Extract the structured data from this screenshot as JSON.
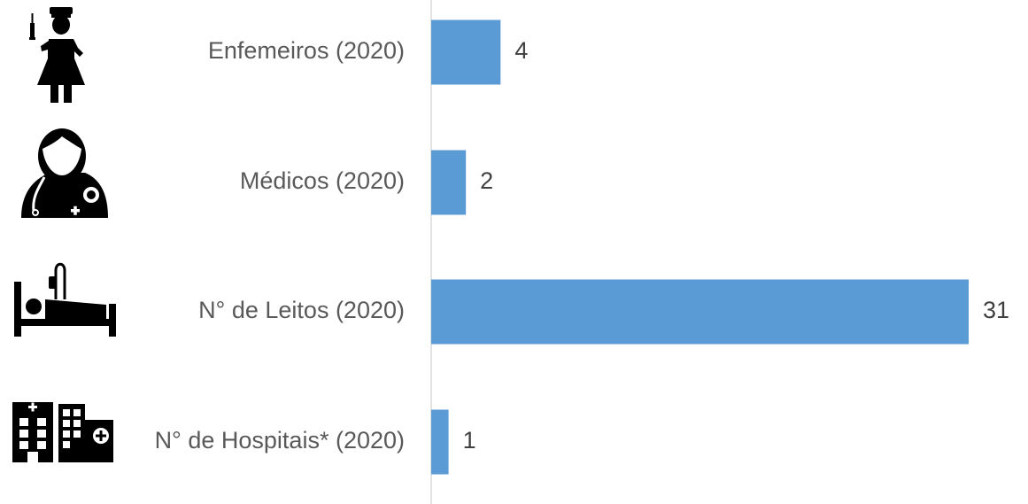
{
  "chart_data": {
    "type": "bar",
    "orientation": "horizontal",
    "categories": [
      "Enfemeiros (2020)",
      "Médicos (2020)",
      "N° de Leitos (2020)",
      "N° de Hospitais* (2020)"
    ],
    "values": [
      4,
      2,
      31,
      1
    ],
    "data_labels": [
      "4",
      "2",
      "31",
      "1"
    ],
    "icons": [
      "nurse-icon",
      "doctor-icon",
      "hospital-bed-icon",
      "hospital-buildings-icon"
    ],
    "xlim": [
      0,
      31
    ],
    "grid": false,
    "legend": "none",
    "bar_color": "#5b9bd5",
    "axis_color": "#d9d9d9"
  }
}
